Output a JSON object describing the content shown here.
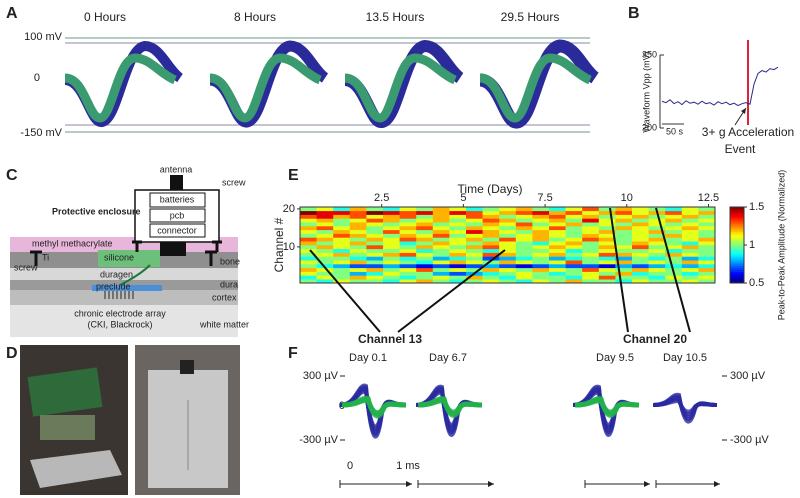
{
  "panel_labels": [
    "A",
    "B",
    "C",
    "D",
    "E",
    "F"
  ],
  "panel_a": {
    "time_labels": [
      "0 Hours",
      "8 Hours",
      "13.5 Hours",
      "29.5 Hours"
    ],
    "axis_labels": [
      "100 mV",
      "0",
      "-150 mV"
    ]
  },
  "panel_b": {
    "type": "line",
    "y_label": "Waveform Vpp (mV)",
    "ylim": [
      200,
      350
    ],
    "yticks": [
      200,
      350
    ],
    "color": "#2a2a8a",
    "values": [
      255,
      252,
      258,
      250,
      254,
      248,
      256,
      251,
      253,
      249,
      255,
      250,
      252,
      247,
      254,
      250,
      253,
      248,
      251,
      246,
      250,
      252,
      249,
      290,
      312,
      318,
      315,
      322,
      320,
      325
    ],
    "scale_bar": "50 s",
    "annotation": [
      "3+ g Acceleration",
      "Event"
    ]
  },
  "panel_c": {
    "antenna": "antenna",
    "screw": "screw",
    "enclosure": "Protective enclosure",
    "batteries": "batteries",
    "pcb": "pcb",
    "connector": "connector",
    "methyl": "methyl methacrylate",
    "ti": "Ti",
    "ti_screw": "screw",
    "silicone": "silicone",
    "duragen": "duragen",
    "preclude": "preclude",
    "bone": "bone",
    "dura": "dura",
    "cortex": "cortex",
    "array": "chronic electrode array",
    "array_source": "(CKI, Blackrock)",
    "white_matter": "white matter"
  },
  "panel_e": {
    "type": "heatmap",
    "title": "Time (Days)",
    "y_label": "Channel #",
    "xlim": [
      0,
      12.7
    ],
    "xticks": [
      2.5,
      5,
      7.5,
      10,
      12.5
    ],
    "ylim": [
      0.5,
      20.5
    ],
    "yticks": [
      10,
      20
    ],
    "clim": [
      0.5,
      1.5
    ],
    "colorbar_ticks": [
      0.5,
      1,
      1.5
    ],
    "colorbar_label": "Peak-to-Peak Amplitude (Normalized)",
    "values": [
      [
        1.0,
        0.9,
        1.1,
        1.0,
        1.0,
        0.9,
        1.1,
        1.2,
        1.0,
        0.9,
        1.0,
        1.1,
        1.0,
        0.9,
        1.1,
        1.0,
        1.2,
        1.0,
        1.0,
        0.9,
        1.1,
        1.0,
        1.0,
        1.1,
        1.0
      ],
      [
        0.9,
        1.1,
        1.0,
        1.2,
        1.1,
        1.0,
        0.9,
        1.0,
        1.1,
        1.0,
        1.2,
        1.0,
        0.9,
        1.1,
        1.0,
        1.0,
        0.9,
        1.1,
        1.3,
        1.0,
        1.0,
        0.9,
        1.1,
        1.0,
        1.1
      ],
      [
        1.1,
        1.0,
        1.0,
        0.8,
        0.9,
        1.1,
        1.0,
        1.0,
        0.8,
        0.7,
        0.8,
        0.9,
        1.0,
        1.1,
        1.0,
        0.9,
        1.0,
        1.1,
        1.0,
        1.2,
        0.9,
        1.0,
        1.0,
        0.9,
        1.0
      ],
      [
        1.2,
        1.1,
        1.0,
        1.1,
        1.2,
        1.0,
        1.1,
        1.3,
        1.0,
        1.1,
        1.0,
        1.2,
        1.1,
        1.0,
        1.2,
        1.1,
        1.0,
        1.3,
        1.1,
        1.0,
        1.2,
        1.1,
        1.0,
        1.1,
        1.2
      ],
      [
        1.0,
        0.9,
        0.8,
        0.7,
        0.7,
        0.8,
        0.7,
        0.6,
        0.7,
        0.6,
        0.7,
        0.8,
        0.7,
        0.6,
        0.7,
        0.8,
        0.7,
        0.7,
        0.6,
        0.8,
        0.7,
        0.8,
        0.9,
        0.8,
        0.9
      ],
      [
        1.1,
        1.0,
        1.1,
        1.2,
        1.0,
        1.1,
        1.0,
        0.9,
        1.1,
        1.2,
        1.1,
        1.0,
        1.2,
        1.1,
        1.0,
        1.1,
        1.3,
        1.0,
        1.1,
        1.2,
        1.0,
        1.1,
        1.0,
        1.2,
        1.1
      ],
      [
        0.9,
        1.0,
        1.0,
        0.9,
        0.8,
        1.0,
        0.9,
        1.0,
        0.8,
        0.9,
        1.0,
        0.7,
        0.8,
        0.9,
        1.0,
        0.8,
        0.9,
        1.0,
        0.9,
        0.8,
        1.0,
        0.9,
        1.0,
        0.8,
        0.9
      ],
      [
        1.0,
        1.1,
        1.2,
        1.0,
        1.1,
        1.2,
        1.3,
        1.1,
        1.0,
        1.2,
        1.1,
        1.3,
        1.2,
        1.0,
        1.1,
        1.2,
        1.0,
        1.1,
        1.3,
        1.2,
        1.1,
        1.0,
        1.2,
        1.1,
        1.0
      ],
      [
        1.1,
        1.0,
        0.9,
        1.1,
        1.0,
        1.0,
        1.1,
        0.9,
        1.0,
        1.1,
        1.0,
        0.9,
        1.1,
        1.0,
        1.0,
        1.1,
        0.9,
        1.0,
        1.1,
        1.0,
        1.0,
        1.1,
        0.9,
        1.0,
        1.0
      ],
      [
        1.0,
        1.2,
        1.1,
        1.0,
        1.3,
        1.1,
        1.0,
        1.2,
        1.1,
        1.0,
        1.2,
        1.3,
        1.1,
        1.0,
        1.1,
        1.2,
        1.1,
        1.0,
        1.2,
        1.1,
        1.3,
        1.0,
        1.1,
        1.2,
        1.0
      ],
      [
        1.2,
        1.0,
        1.1,
        1.2,
        1.0,
        1.1,
        0.9,
        1.0,
        1.2,
        1.1,
        1.0,
        1.2,
        1.1,
        1.0,
        0.9,
        1.1,
        1.2,
        1.0,
        1.1,
        1.0,
        1.2,
        1.1,
        1.0,
        0.9,
        1.1
      ],
      [
        1.3,
        1.2,
        1.1,
        1.0,
        1.2,
        1.1,
        1.3,
        1.2,
        1.0,
        1.1,
        1.2,
        1.0,
        1.3,
        1.1,
        1.2,
        1.0,
        1.1,
        1.3,
        1.2,
        1.0,
        1.1,
        1.2,
        1.0,
        1.1,
        1.2
      ],
      [
        1.0,
        1.1,
        1.3,
        1.2,
        1.1,
        1.0,
        1.2,
        1.1,
        1.3,
        1.0,
        1.1,
        1.2,
        1.0,
        1.1,
        1.2,
        1.1,
        1.0,
        1.2,
        1.1,
        1.0,
        1.1,
        1.0,
        1.2,
        1.1,
        1.0
      ],
      [
        1.1,
        1.0,
        1.2,
        1.1,
        1.0,
        1.3,
        1.1,
        1.0,
        1.2,
        1.1,
        1.4,
        1.2,
        1.1,
        1.0,
        1.2,
        1.1,
        1.0,
        1.1,
        1.2,
        1.0,
        1.1,
        1.2,
        1.0,
        1.1,
        1.0
      ],
      [
        1.2,
        1.3,
        1.1,
        1.2,
        1.0,
        1.1,
        1.2,
        1.3,
        1.1,
        1.0,
        1.2,
        1.1,
        1.0,
        1.2,
        1.1,
        1.3,
        1.0,
        1.1,
        1.0,
        1.2,
        1.1,
        1.0,
        1.1,
        1.2,
        1.1
      ],
      [
        1.0,
        1.1,
        1.0,
        1.2,
        1.1,
        1.0,
        1.1,
        1.2,
        1.0,
        1.1,
        1.0,
        1.2,
        1.1,
        1.3,
        1.0,
        1.1,
        1.2,
        1.0,
        1.1,
        1.0,
        1.2,
        1.1,
        1.0,
        1.1,
        1.0
      ],
      [
        1.1,
        1.2,
        1.0,
        1.1,
        1.3,
        1.2,
        1.0,
        1.1,
        1.2,
        1.0,
        1.1,
        1.3,
        1.2,
        1.0,
        1.1,
        1.2,
        1.0,
        1.4,
        1.1,
        1.2,
        1.0,
        1.1,
        1.2,
        1.0,
        1.1
      ],
      [
        1.3,
        1.4,
        1.2,
        1.3,
        1.1,
        1.2,
        1.3,
        1.0,
        1.2,
        1.1,
        1.3,
        1.2,
        1.0,
        1.1,
        1.2,
        1.3,
        1.1,
        1.2,
        1.0,
        1.1,
        1.2,
        1.0,
        1.1,
        1.2,
        1.0
      ],
      [
        1.5,
        1.4,
        1.4,
        1.3,
        1.5,
        1.4,
        1.3,
        1.4,
        1.2,
        1.4,
        1.3,
        1.1,
        1.2,
        1.3,
        1.4,
        1.2,
        1.3,
        1.1,
        1.2,
        1.3,
        1.1,
        1.2,
        1.3,
        1.1,
        1.2
      ],
      [
        1.0,
        1.1,
        0.9,
        1.2,
        1.0,
        0.9,
        1.1,
        1.0,
        1.2,
        1.1,
        0.9,
        1.0,
        1.1,
        1.2,
        1.0,
        0.9,
        1.1,
        1.3,
        1.0,
        1.2,
        1.1,
        1.0,
        0.9,
        1.1,
        1.0
      ]
    ]
  },
  "panel_f": {
    "channels": [
      "Channel 13",
      "Channel 20"
    ],
    "days": [
      "Day 0.1",
      "Day 6.7",
      "Day 9.5",
      "Day 10.5"
    ],
    "left_axis": [
      "300 µV",
      "0",
      "-300 µV"
    ],
    "right_axis": [
      "300 µV",
      "-300 µV"
    ],
    "time_axis": [
      "0",
      "1 ms"
    ]
  }
}
